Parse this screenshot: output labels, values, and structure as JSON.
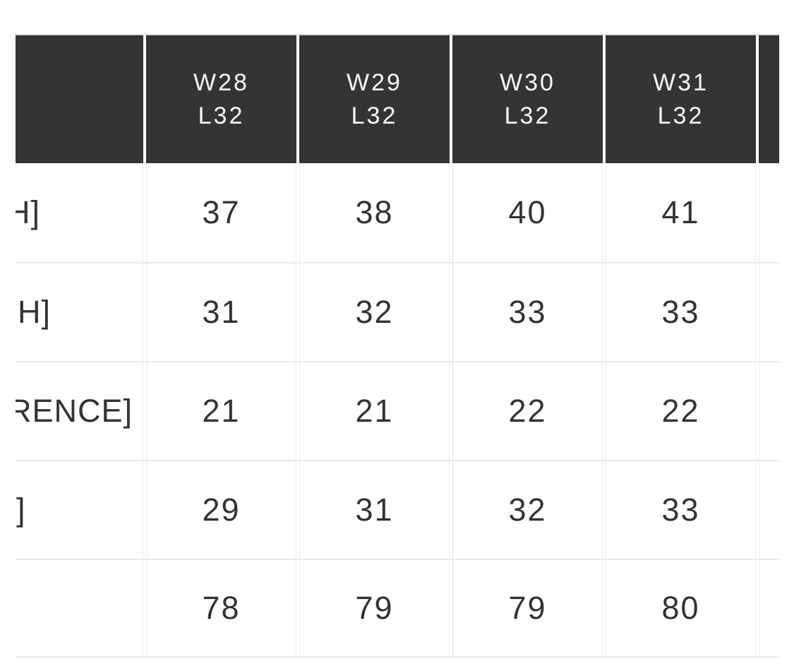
{
  "page": {
    "background": "#ffffff",
    "description": "Horizontally scrolled garment size chart; left label column and rightmost size column are clipped by the viewport"
  },
  "colors": {
    "header_bg": "#333436",
    "header_text": "#f7f7f7",
    "body_text": "#333333",
    "row_gridline": "#e9e9e9",
    "cell_edge": "#ececec",
    "top_border": "#dcdcdc"
  },
  "table": {
    "type": "table",
    "header": [
      {
        "line1": "",
        "line2": ""
      },
      {
        "line1": "W28",
        "line2": "L32"
      },
      {
        "line1": "W29",
        "line2": "L32"
      },
      {
        "line1": "W30",
        "line2": "L32"
      },
      {
        "line1": "W31",
        "line2": "L32"
      },
      {
        "line1": "",
        "line2": ""
      }
    ],
    "rows": [
      {
        "label_visible": "H]",
        "values": [
          "37",
          "38",
          "40",
          "41",
          ""
        ]
      },
      {
        "label_visible": "H]",
        "values": [
          "31",
          "32",
          "33",
          "33",
          ""
        ]
      },
      {
        "label_visible": "RENCE]",
        "values": [
          "21",
          "21",
          "22",
          "22",
          ""
        ]
      },
      {
        "label_visible": "]",
        "values": [
          "29",
          "31",
          "32",
          "33",
          ""
        ]
      },
      {
        "label_visible": "",
        "values": [
          "78",
          "79",
          "79",
          "80",
          ""
        ]
      }
    ]
  }
}
